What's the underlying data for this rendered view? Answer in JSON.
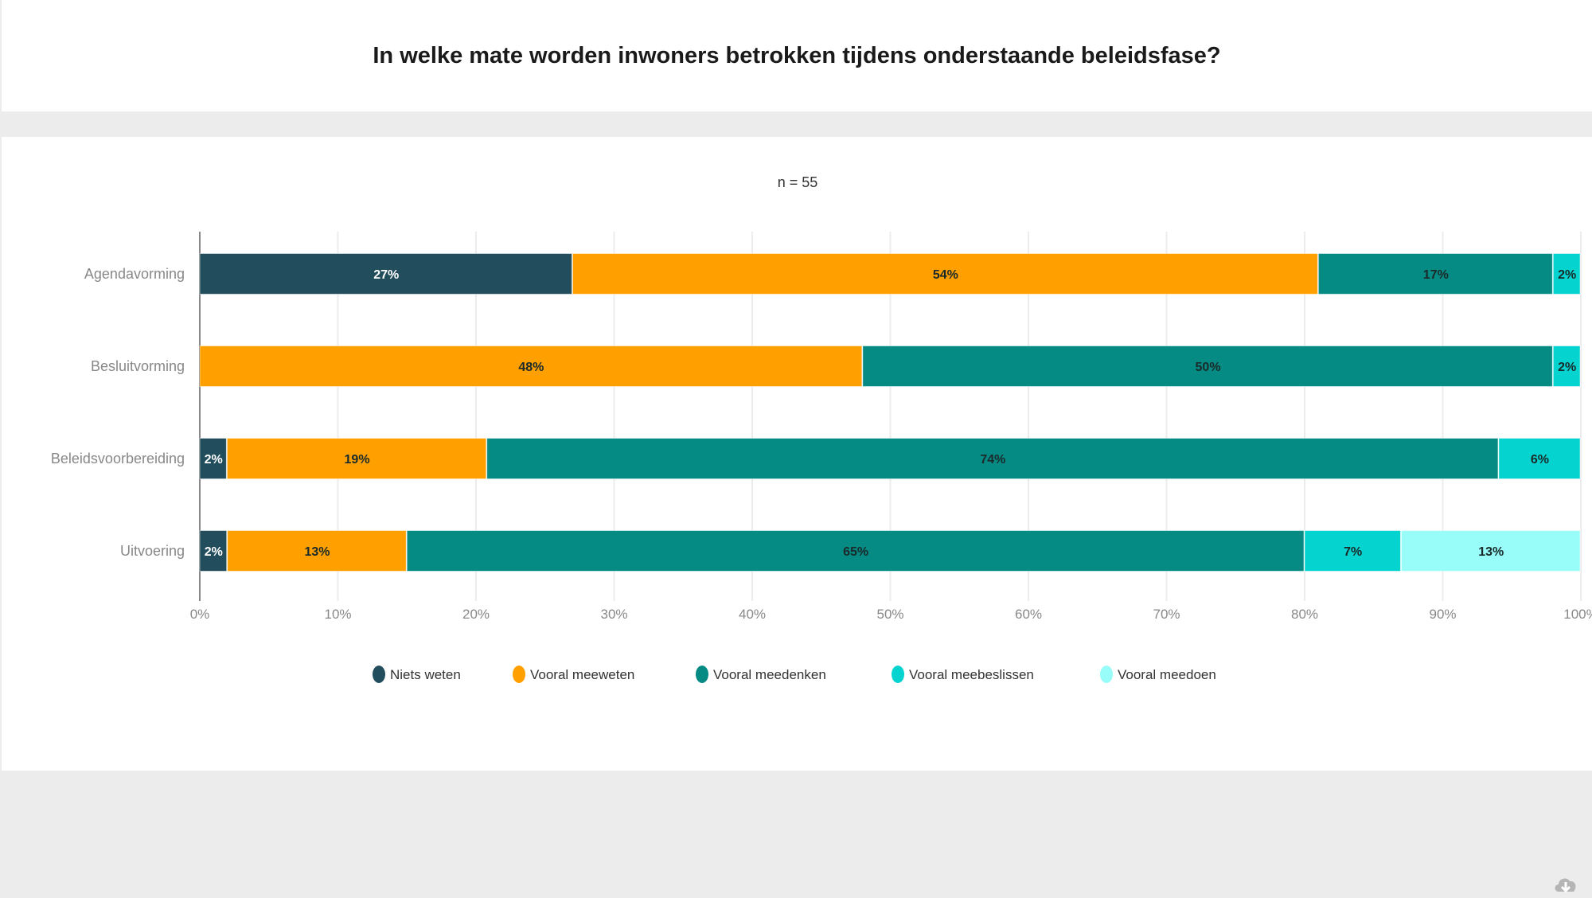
{
  "title": "In welke mate worden inwoners betrokken tijdens onderstaande beleidsfase?",
  "chart_data": {
    "type": "bar",
    "orientation": "horizontal",
    "stacked": "percent",
    "subtitle": "n = 55",
    "categories": [
      "Agendavorming",
      "Besluitvorming",
      "Beleidsvoorbereiding",
      "Uitvoering"
    ],
    "series": [
      {
        "name": "Niets weten",
        "color": "#214d5c",
        "values": [
          27,
          0,
          2,
          2
        ]
      },
      {
        "name": "Vooral meeweten",
        "color": "#ffa000",
        "values": [
          54,
          48,
          19,
          13
        ]
      },
      {
        "name": "Vooral meedenken",
        "color": "#058a84",
        "values": [
          17,
          50,
          74,
          65
        ]
      },
      {
        "name": "Vooral meebeslissen",
        "color": "#05d3cf",
        "values": [
          2,
          2,
          6,
          7
        ]
      },
      {
        "name": "Vooral meedoen",
        "color": "#98fcf8",
        "values": [
          0,
          0,
          0,
          13
        ]
      }
    ],
    "data_labels_suffix": "%",
    "xlim": [
      0,
      100
    ],
    "x_ticks": [
      "0%",
      "10%",
      "20%",
      "30%",
      "40%",
      "50%",
      "60%",
      "70%",
      "80%",
      "90%",
      "100%"
    ],
    "grid": true,
    "legend": "bottom"
  },
  "download_icon": "cloud-download-icon"
}
